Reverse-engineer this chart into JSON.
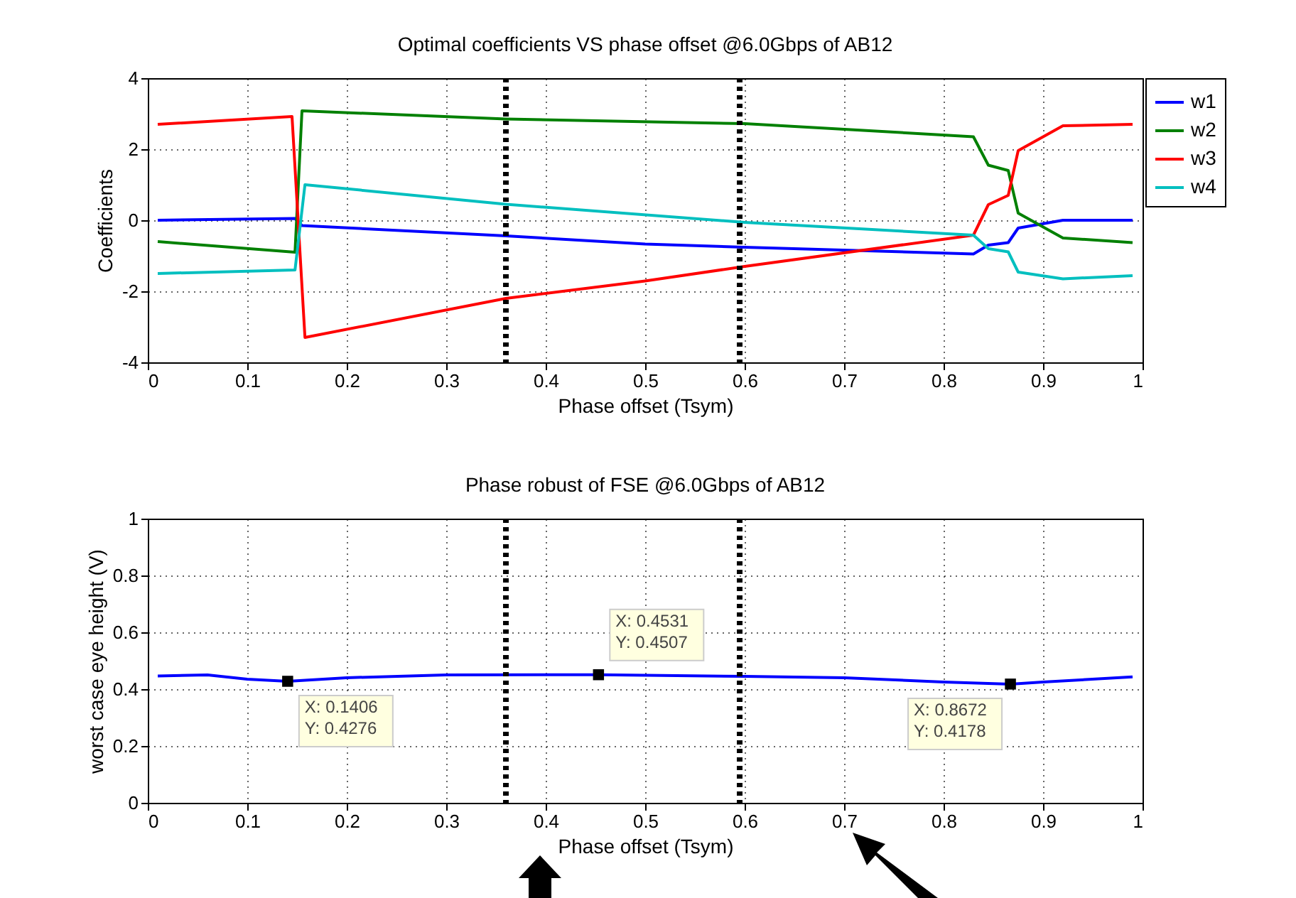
{
  "chart_data": [
    {
      "type": "line",
      "title": "Optimal coefficients VS phase offset @6.0Gbps of AB12",
      "xlabel": "Phase offset (Tsym)",
      "ylabel": "Coefficients",
      "xlim": [
        0,
        1
      ],
      "xticks": [
        0,
        0.1,
        0.2,
        0.3,
        0.4,
        0.5,
        0.6,
        0.7,
        0.8,
        0.9,
        1
      ],
      "ylim": [
        -4,
        4
      ],
      "yticks": [
        -4,
        -2,
        0,
        2,
        4
      ],
      "grid": true,
      "legend": "top right",
      "marker": "none",
      "line_style": "solid",
      "series": [
        {
          "name": "w1",
          "color": "#0000ff",
          "x": [
            0.01,
            0.148,
            0.155,
            0.36,
            0.5,
            0.6,
            0.83,
            0.845,
            0.865,
            0.875,
            0.92,
            0.99
          ],
          "values": [
            0,
            0.05,
            -0.15,
            -0.44,
            -0.67,
            -0.76,
            -0.95,
            -0.7,
            -0.63,
            -0.22,
            0,
            0
          ]
        },
        {
          "name": "w2",
          "color": "#008000",
          "x": [
            0.01,
            0.148,
            0.155,
            0.36,
            0.6,
            0.83,
            0.845,
            0.865,
            0.875,
            0.92,
            0.99
          ],
          "values": [
            -0.6,
            -0.9,
            3.08,
            2.85,
            2.72,
            2.35,
            1.55,
            1.4,
            0.2,
            -0.5,
            -0.63
          ]
        },
        {
          "name": "w3",
          "color": "#ff0000",
          "x": [
            0.01,
            0.145,
            0.158,
            0.36,
            0.5,
            0.6,
            0.83,
            0.845,
            0.865,
            0.875,
            0.92,
            0.99
          ],
          "values": [
            2.7,
            2.92,
            -3.3,
            -2.2,
            -1.71,
            -1.3,
            -0.42,
            0.44,
            0.7,
            1.96,
            2.66,
            2.7
          ]
        },
        {
          "name": "w4",
          "color": "#00bfbf",
          "x": [
            0.01,
            0.148,
            0.158,
            0.36,
            0.6,
            0.83,
            0.845,
            0.865,
            0.875,
            0.92,
            0.99
          ],
          "values": [
            -1.5,
            -1.4,
            1.0,
            0.45,
            -0.06,
            -0.42,
            -0.8,
            -0.89,
            -1.46,
            -1.65,
            -1.56
          ]
        }
      ],
      "ref_lines": [
        {
          "axis": "x",
          "value": 0.36,
          "color": "#000000",
          "line_style": "dotted"
        },
        {
          "axis": "x",
          "value": 0.595,
          "color": "#000000",
          "line_style": "dotted"
        }
      ]
    },
    {
      "type": "line",
      "title": "Phase robust of FSE @6.0Gbps of AB12",
      "xlabel": "Phase offset (Tsym)",
      "ylabel": "worst case eye height (V)",
      "xlim": [
        0,
        1
      ],
      "xticks": [
        0,
        0.1,
        0.2,
        0.3,
        0.4,
        0.5,
        0.6,
        0.7,
        0.8,
        0.9,
        1
      ],
      "ylim": [
        0,
        1
      ],
      "yticks": [
        0,
        0.2,
        0.4,
        0.6,
        0.8,
        1
      ],
      "grid": true,
      "legend": false,
      "marker": "none",
      "line_style": "solid",
      "series": [
        {
          "color": "#0000ff",
          "x": [
            0.01,
            0.06,
            0.1,
            0.1406,
            0.2,
            0.3,
            0.4531,
            0.6,
            0.7,
            0.8,
            0.8672,
            0.9,
            0.99
          ],
          "values": [
            0.446,
            0.45,
            0.435,
            0.4276,
            0.44,
            0.45,
            0.4507,
            0.445,
            0.44,
            0.425,
            0.4178,
            0.425,
            0.443
          ]
        }
      ],
      "annotations": [
        {
          "text": "X: 0.1406\nY: 0.4276",
          "x": 0.1406,
          "y": 0.4276
        },
        {
          "text": "X: 0.4531\nY: 0.4507",
          "x": 0.4531,
          "y": 0.4507
        },
        {
          "text": "X: 0.8672\nY: 0.4178",
          "x": 0.8672,
          "y": 0.4178
        }
      ],
      "ref_lines": [
        {
          "axis": "x",
          "value": 0.36,
          "color": "#000000",
          "line_style": "dotted"
        },
        {
          "axis": "x",
          "value": 0.595,
          "color": "#000000",
          "line_style": "dotted"
        }
      ]
    }
  ]
}
